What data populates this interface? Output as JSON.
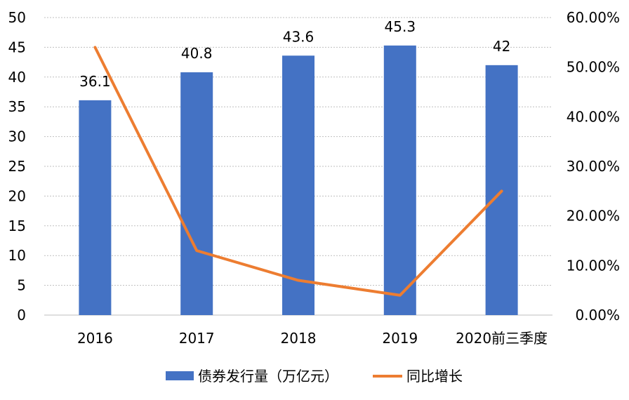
{
  "chart_data": {
    "type": "bar",
    "categories": [
      "2016",
      "2017",
      "2018",
      "2019",
      "2020前三季度"
    ],
    "series": [
      {
        "name": "债券发行量（万亿元）",
        "type": "bar",
        "axis": "left",
        "values": [
          36.1,
          40.8,
          43.6,
          45.3,
          42
        ],
        "data_labels": [
          "36.1",
          "40.8",
          "43.6",
          "45.3",
          "42"
        ]
      },
      {
        "name": "同比增长",
        "type": "line",
        "axis": "right",
        "values": [
          0.54,
          0.13,
          0.07,
          0.04,
          0.25
        ]
      }
    ],
    "ylim_left": [
      0,
      50
    ],
    "yticks_left": [
      "0",
      "5",
      "10",
      "15",
      "20",
      "25",
      "30",
      "35",
      "40",
      "45",
      "50"
    ],
    "ylim_right": [
      0,
      0.6
    ],
    "yticks_right": [
      "0.00%",
      "10.00%",
      "20.00%",
      "30.00%",
      "40.00%",
      "50.00%",
      "60.00%"
    ],
    "grid": true,
    "legend_position": "bottom",
    "colors": {
      "bar": "#4472C4",
      "line": "#ED7D31",
      "grid": "#BFBFBF"
    }
  }
}
